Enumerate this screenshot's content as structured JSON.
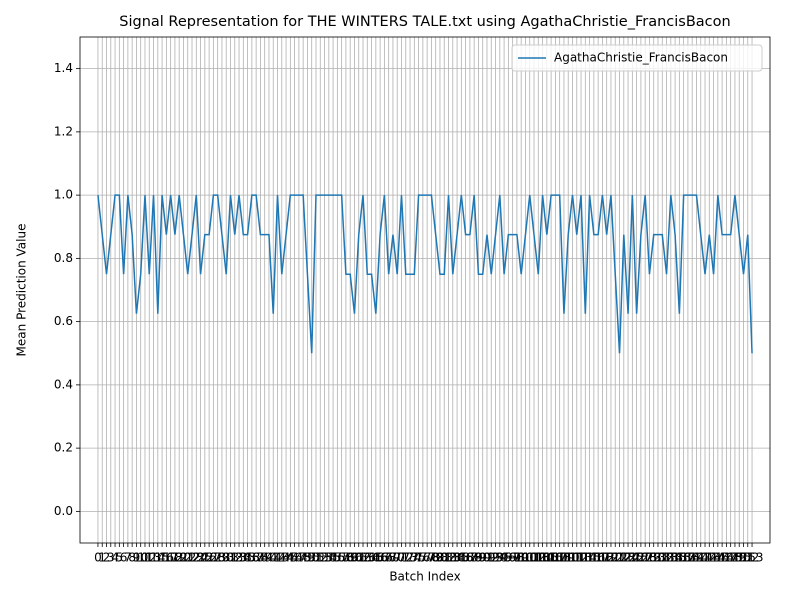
{
  "chart_data": {
    "type": "line",
    "title": "Signal Representation for THE WINTERS TALE.txt using AgathaChristie_FrancisBacon",
    "x_label": "Batch Index",
    "y_label": "Mean Prediction Value",
    "x": [
      0,
      1,
      2,
      3,
      4,
      5,
      6,
      7,
      8,
      9,
      10,
      11,
      12,
      13,
      14,
      15,
      16,
      17,
      18,
      19,
      20,
      21,
      22,
      23,
      24,
      25,
      26,
      27,
      28,
      29,
      30,
      31,
      32,
      33,
      34,
      35,
      36,
      37,
      38,
      39,
      40,
      41,
      42,
      43,
      44,
      45,
      46,
      47,
      48,
      49,
      50,
      51,
      52,
      53,
      54,
      55,
      56,
      57,
      58,
      59,
      60,
      61,
      62,
      63,
      64,
      65,
      66,
      67,
      68,
      69,
      70,
      71,
      72,
      73,
      74,
      75,
      76,
      77,
      78,
      79,
      80,
      81,
      82,
      83,
      84,
      85,
      86,
      87,
      88,
      89,
      90,
      91,
      92,
      93,
      94,
      95,
      96,
      97,
      98,
      99,
      100,
      101,
      102,
      103,
      104,
      105,
      106,
      107,
      108,
      109,
      110,
      111,
      112,
      113,
      114,
      115,
      116,
      117,
      118,
      119,
      120,
      121,
      122,
      123,
      124,
      125,
      126,
      127,
      128,
      129,
      130,
      131,
      132,
      133,
      134,
      135,
      136,
      137,
      138,
      139,
      140,
      141,
      142,
      143,
      144,
      145,
      146,
      147,
      148,
      149,
      150,
      151,
      152,
      153
    ],
    "series": [
      {
        "name": "AgathaChristie_FrancisBacon",
        "color": "#1f77b4",
        "values": [
          1,
          0.875,
          0.75,
          0.875,
          1,
          1,
          0.75,
          1,
          0.875,
          0.625,
          0.75,
          1,
          0.75,
          1,
          0.625,
          1,
          0.875,
          1,
          0.875,
          1,
          0.875,
          0.75,
          0.875,
          1,
          0.75,
          0.875,
          0.875,
          1,
          1,
          0.875,
          0.75,
          1,
          0.875,
          1,
          0.875,
          0.875,
          1,
          1,
          0.875,
          0.875,
          0.875,
          0.625,
          1,
          0.75,
          0.875,
          1,
          1,
          1,
          1,
          0.75,
          0.5,
          1,
          1,
          1,
          1,
          1,
          1,
          1,
          0.75,
          0.75,
          0.625,
          0.875,
          1,
          0.75,
          0.75,
          0.625,
          0.875,
          1,
          0.75,
          0.875,
          0.75,
          1,
          0.75,
          0.75,
          0.75,
          1,
          1,
          1,
          1,
          0.875,
          0.75,
          0.75,
          1,
          0.75,
          0.875,
          1,
          0.875,
          0.875,
          1,
          0.75,
          0.75,
          0.875,
          0.75,
          0.875,
          1,
          0.75,
          0.875,
          0.875,
          0.875,
          0.75,
          0.875,
          1,
          0.875,
          0.75,
          1,
          0.875,
          1,
          1,
          1,
          0.625,
          0.875,
          1,
          0.875,
          1,
          0.625,
          1,
          0.875,
          0.875,
          1,
          0.875,
          1,
          0.75,
          0.5,
          0.875,
          0.625,
          1,
          0.625,
          0.875,
          1,
          0.75,
          0.875,
          0.875,
          0.875,
          0.75,
          1,
          0.875,
          0.625,
          1,
          1,
          1,
          1,
          0.875,
          0.75,
          0.875,
          0.75,
          1,
          0.875,
          0.875,
          0.875,
          1,
          0.875,
          0.75,
          0.875,
          0.5
        ]
      }
    ],
    "xlim": [
      -4.2,
      157.2
    ],
    "xticks": [
      0,
      1,
      2,
      3,
      4,
      5,
      6,
      7,
      8,
      9,
      10,
      11,
      12,
      13,
      14,
      15,
      16,
      17,
      18,
      19,
      20,
      21,
      22,
      23,
      24,
      25,
      26,
      27,
      28,
      29,
      30,
      31,
      32,
      33,
      34,
      35,
      36,
      37,
      38,
      39,
      40,
      41,
      42,
      43,
      44,
      45,
      46,
      47,
      48,
      49,
      50,
      51,
      52,
      53,
      54,
      55,
      56,
      57,
      58,
      59,
      60,
      61,
      62,
      63,
      64,
      65,
      66,
      67,
      68,
      69,
      70,
      71,
      72,
      73,
      74,
      75,
      76,
      77,
      78,
      79,
      80,
      81,
      82,
      83,
      84,
      85,
      86,
      87,
      88,
      89,
      90,
      91,
      92,
      93,
      94,
      95,
      96,
      97,
      98,
      99,
      100,
      101,
      102,
      103,
      104,
      105,
      106,
      107,
      108,
      109,
      110,
      111,
      112,
      113,
      114,
      115,
      116,
      117,
      118,
      119,
      120,
      121,
      122,
      123,
      124,
      125,
      126,
      127,
      128,
      129,
      130,
      131,
      132,
      133,
      134,
      135,
      136,
      137,
      138,
      139,
      140,
      141,
      142,
      143,
      144,
      145,
      146,
      147,
      148,
      149,
      150,
      151,
      152,
      153
    ],
    "ylim": [
      -0.1,
      1.5
    ],
    "yticks": [
      {
        "value": 0,
        "label": "0.0"
      },
      0.2,
      0.4,
      0.6,
      0.8,
      {
        "value": 1,
        "label": "1.0"
      },
      1.2,
      1.4
    ],
    "grid": true,
    "legend": "upper right"
  }
}
